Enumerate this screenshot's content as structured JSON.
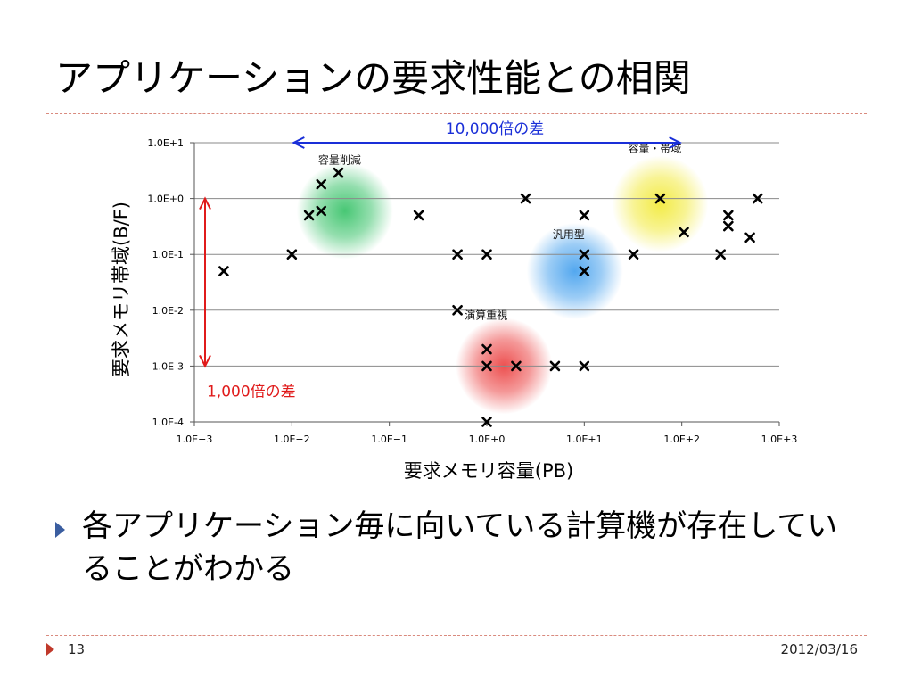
{
  "slide": {
    "title": "アプリケーションの要求性能との相関",
    "bullet": "各アプリケーション毎に向いている計算機が存在していることがわかる",
    "page_number": "13",
    "date": "2012/03/16"
  },
  "chart_data": {
    "type": "scatter",
    "xlabel": "要求メモリ容量(PB)",
    "ylabel": "要求メモリ帯域(B/F)",
    "xscale": "log",
    "yscale": "log",
    "xlim_exp": [
      -3,
      3
    ],
    "ylim_exp": [
      -4,
      1
    ],
    "xticks": [
      "1.0E−3",
      "1.0E−2",
      "1.0E−1",
      "1.0E+0",
      "1.0E+1",
      "1.0E+2",
      "1.0E+3"
    ],
    "yticks": [
      "1.0E-4",
      "1.0E-3",
      "1.0E-2",
      "1.0E-1",
      "1.0E+0",
      "1.0E+1"
    ],
    "grid": "horizontal",
    "marker": "x",
    "points": [
      {
        "x": 0.002,
        "y": 0.05
      },
      {
        "x": 0.01,
        "y": 0.1
      },
      {
        "x": 0.015,
        "y": 0.5
      },
      {
        "x": 0.02,
        "y": 1.8
      },
      {
        "x": 0.02,
        "y": 0.6
      },
      {
        "x": 0.03,
        "y": 2.9
      },
      {
        "x": 0.2,
        "y": 0.5
      },
      {
        "x": 0.5,
        "y": 0.1
      },
      {
        "x": 0.5,
        "y": 0.01
      },
      {
        "x": 1,
        "y": 0.1
      },
      {
        "x": 1,
        "y": 0.002
      },
      {
        "x": 1,
        "y": 0.001
      },
      {
        "x": 1,
        "y": 0.0001
      },
      {
        "x": 2,
        "y": 0.001
      },
      {
        "x": 2.5,
        "y": 1
      },
      {
        "x": 5,
        "y": 0.001
      },
      {
        "x": 10,
        "y": 0.5
      },
      {
        "x": 10,
        "y": 0.1
      },
      {
        "x": 10,
        "y": 0.05
      },
      {
        "x": 10,
        "y": 0.001
      },
      {
        "x": 32,
        "y": 0.1
      },
      {
        "x": 60,
        "y": 1
      },
      {
        "x": 105,
        "y": 0.25
      },
      {
        "x": 250,
        "y": 0.1
      },
      {
        "x": 300,
        "y": 0.5
      },
      {
        "x": 300,
        "y": 0.32
      },
      {
        "x": 500,
        "y": 0.2
      },
      {
        "x": 600,
        "y": 1
      }
    ],
    "groups": [
      {
        "label": "容量削減",
        "color": "#3ec46d",
        "cx": 0.035,
        "cy": 0.6
      },
      {
        "label": "容量・帯域",
        "color": "#f2ea3c",
        "cx": 60,
        "cy": 0.8
      },
      {
        "label": "汎用型",
        "color": "#4aa3ee",
        "cx": 8,
        "cy": 0.05
      },
      {
        "label": "演算重視",
        "color": "#ec4747",
        "cx": 1.5,
        "cy": 0.001
      }
    ],
    "annotations": [
      {
        "text": "10,000倍の差",
        "color": "#1a2fd8",
        "direction": "horizontal",
        "from": 0.01,
        "to": 100,
        "level": 10
      },
      {
        "text": "1,000倍の差",
        "color": "#e01b1b",
        "direction": "vertical",
        "from": 1,
        "to": 0.001,
        "at": 0.001
      }
    ]
  }
}
